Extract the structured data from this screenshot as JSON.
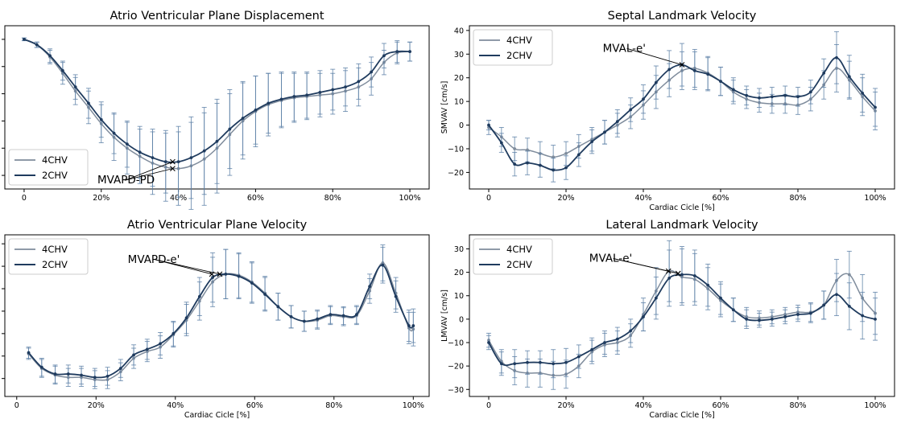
{
  "colors": {
    "series_4chv": "#7f8c9c",
    "series_2chv": "#1f3b5e",
    "errbar": "#5b7fa6",
    "axis": "#000000"
  },
  "chart_data": [
    {
      "id": "avpd",
      "type": "line",
      "title": "Atrio Ventricular Plane Displacement",
      "xlabel": "",
      "ylabel": "",
      "xlim": [
        -5,
        105
      ],
      "ylim": [
        -11,
        1
      ],
      "xticks": [
        0,
        20,
        40,
        60,
        80,
        100
      ],
      "xticklabels": [
        "0",
        "20%",
        "40%",
        "60%",
        "80%",
        "100%"
      ],
      "yticks": [
        0,
        -2,
        -4,
        -6,
        -8,
        -10
      ],
      "yticklabels": [
        "",
        "",
        "",
        "",
        "",
        ""
      ],
      "legend_loc": "lower-left",
      "x": [
        0,
        3.3,
        6.7,
        10,
        13.3,
        16.7,
        20,
        23.3,
        26.7,
        30,
        33.3,
        36.7,
        40,
        43.3,
        46.7,
        50,
        53.3,
        56.7,
        60,
        63.3,
        66.7,
        70,
        73.3,
        76.7,
        80,
        83.3,
        86.7,
        90,
        93.3,
        96.7,
        100
      ],
      "series": [
        {
          "name": "4CHV",
          "values": [
            0,
            -0.4,
            -1.3,
            -2.5,
            -3.8,
            -5.0,
            -6.2,
            -7.2,
            -8.0,
            -8.6,
            -9.1,
            -9.4,
            -9.5,
            -9.3,
            -8.8,
            -8.0,
            -7.0,
            -6.0,
            -5.3,
            -4.8,
            -4.5,
            -4.3,
            -4.2,
            -4.1,
            -4.0,
            -3.8,
            -3.5,
            -2.9,
            -1.7,
            -1.0,
            -0.9
          ],
          "errors": [
            0.1,
            0.2,
            0.5,
            0.8,
            1.0,
            1.2,
            1.4,
            1.7,
            1.9,
            2.0,
            2.3,
            2.5,
            2.7,
            3.2,
            3.4,
            3.3,
            3.0,
            2.8,
            2.6,
            2.3,
            2.0,
            1.8,
            1.7,
            1.6,
            1.5,
            1.5,
            1.4,
            1.2,
            0.9,
            0.8,
            0.7
          ]
        },
        {
          "name": "2CHV",
          "values": [
            0,
            -0.4,
            -1.2,
            -2.3,
            -3.5,
            -4.7,
            -5.9,
            -6.9,
            -7.7,
            -8.3,
            -8.7,
            -9.0,
            -9.0,
            -8.7,
            -8.2,
            -7.5,
            -6.6,
            -5.8,
            -5.2,
            -4.7,
            -4.4,
            -4.2,
            -4.1,
            -3.9,
            -3.7,
            -3.5,
            -3.1,
            -2.4,
            -1.2,
            -0.9,
            -0.9
          ],
          "errors": [
            0.1,
            0.2,
            0.5,
            0.7,
            0.9,
            1.1,
            1.3,
            1.5,
            1.7,
            1.9,
            2.1,
            2.3,
            2.6,
            3.0,
            3.2,
            3.1,
            2.9,
            2.7,
            2.5,
            2.2,
            2.0,
            1.8,
            1.7,
            1.6,
            1.5,
            1.4,
            1.3,
            1.1,
            0.9,
            0.8,
            0.7
          ]
        }
      ],
      "annotations": [
        {
          "text": "MVAPD-PD",
          "x": 19,
          "y": -10.6,
          "points": [
            [
              38.5,
              -9.0
            ],
            [
              38.5,
              -9.5
            ]
          ]
        }
      ]
    },
    {
      "id": "smvav",
      "type": "line",
      "title": "Septal Landmark Velocity",
      "xlabel": "Cardiac Cicle [%]",
      "ylabel": "SMVAV [cm/s]",
      "xlim": [
        -5,
        105
      ],
      "ylim": [
        -27,
        42
      ],
      "xticks": [
        0,
        20,
        40,
        60,
        80,
        100
      ],
      "xticklabels": [
        "0",
        "20%",
        "40%",
        "60%",
        "80%",
        "100%"
      ],
      "yticks": [
        -20,
        -10,
        0,
        10,
        20,
        30,
        40
      ],
      "yticklabels": [
        "−20",
        "−10",
        "0",
        "10",
        "20",
        "30",
        "40"
      ],
      "legend_loc": "upper-left",
      "x": [
        0,
        3.3,
        6.7,
        10,
        13.3,
        16.7,
        20,
        23.3,
        26.7,
        30,
        33.3,
        36.7,
        40,
        43.3,
        46.7,
        50,
        53.3,
        56.7,
        60,
        63.3,
        66.7,
        70,
        73.3,
        76.7,
        80,
        83.3,
        86.7,
        90,
        93.3,
        96.7,
        100
      ],
      "series": [
        {
          "name": "4CHV",
          "values": [
            -1,
            -5,
            -10,
            -10.5,
            -12,
            -13.5,
            -12,
            -9,
            -6,
            -3,
            0,
            3.5,
            8.5,
            14,
            19,
            23,
            24,
            22,
            18.5,
            14,
            11,
            9.5,
            9,
            9,
            8.5,
            11,
            17,
            24,
            19,
            12,
            6
          ],
          "errors": [
            3,
            4,
            5,
            5,
            5,
            5,
            5,
            5,
            5,
            5,
            5,
            5,
            6,
            7,
            7,
            8,
            8,
            7,
            6,
            5,
            4,
            4,
            4,
            4,
            4,
            5,
            6,
            10,
            8,
            8,
            8
          ]
        },
        {
          "name": "2CHV",
          "values": [
            0,
            -7.5,
            -16.5,
            -16,
            -17,
            -19,
            -18,
            -12.5,
            -7,
            -3,
            1.5,
            6.5,
            11,
            18,
            23.5,
            25.5,
            23,
            21.5,
            18.5,
            15,
            12.5,
            11.5,
            12,
            12.5,
            12,
            14,
            22,
            28.5,
            20.5,
            13.5,
            7.5
          ],
          "errors": [
            2,
            4,
            5,
            5,
            5,
            5,
            5,
            5,
            5,
            5,
            5,
            5,
            6,
            7,
            8,
            9,
            8,
            7,
            6,
            5,
            4,
            4,
            4,
            4,
            4,
            5,
            6,
            11,
            9,
            8,
            8
          ]
        }
      ],
      "annotations": [
        {
          "text": "MVAL-e'",
          "x": 29.5,
          "y": 31,
          "points": [
            [
              50,
              25.5
            ]
          ]
        }
      ]
    },
    {
      "id": "avpv",
      "type": "line",
      "title": "Atrio Ventricular Plane Velocity",
      "xlabel": "Cardiac Cicle [%]",
      "ylabel": "",
      "xlim": [
        -3,
        104
      ],
      "ylim": [
        -7.6,
        6.8
      ],
      "xticks": [
        0,
        20,
        40,
        60,
        80,
        100
      ],
      "xticklabels": [
        "0",
        "20%",
        "40%",
        "60%",
        "80%",
        "100%"
      ],
      "yticks": [
        -6,
        -4,
        -2,
        0,
        2,
        4,
        6
      ],
      "yticklabels": [
        "",
        "",
        "",
        "",
        "",
        "",
        ""
      ],
      "legend_loc": "upper-left",
      "x": [
        3,
        6.3,
        9.7,
        13,
        16.3,
        19.7,
        22.9,
        26.2,
        29.5,
        32.9,
        36.2,
        39.5,
        42.8,
        46.1,
        49.4,
        52.7,
        56,
        59.3,
        62.6,
        65.9,
        69.2,
        72.5,
        75.8,
        79.1,
        82.4,
        85.7,
        89,
        92.3,
        95.6,
        98.9,
        100
      ],
      "series": [
        {
          "name": "4CHV",
          "values": [
            -3.8,
            -5.1,
            -5.7,
            -5.9,
            -5.9,
            -6.1,
            -6.1,
            -5.4,
            -4.2,
            -3.6,
            -3.2,
            -2.1,
            -0.8,
            0.9,
            2.6,
            3.3,
            3.2,
            2.6,
            1.6,
            0.4,
            -0.5,
            -0.9,
            -0.8,
            -0.4,
            -0.5,
            -0.4,
            1.8,
            4.3,
            1.6,
            -1.5,
            -1.6
          ],
          "errors": [
            0.5,
            0.8,
            0.8,
            0.8,
            0.8,
            0.8,
            0.8,
            0.8,
            0.9,
            0.9,
            1.0,
            1.1,
            1.4,
            1.7,
            2.2,
            2.2,
            2.0,
            1.8,
            1.5,
            1.2,
            1.0,
            0.9,
            0.8,
            0.8,
            0.8,
            0.8,
            1.1,
            1.6,
            1.4,
            1.4,
            1.5
          ]
        },
        {
          "name": "2CHV",
          "values": [
            -3.7,
            -5.0,
            -5.6,
            -5.6,
            -5.7,
            -5.9,
            -5.8,
            -5.1,
            -3.9,
            -3.4,
            -2.9,
            -2.0,
            -0.6,
            1.3,
            3.0,
            3.3,
            3.1,
            2.5,
            1.5,
            0.4,
            -0.5,
            -0.9,
            -0.7,
            -0.3,
            -0.4,
            -0.3,
            2.2,
            4.1,
            1.3,
            -1.3,
            -1.3
          ],
          "errors": [
            0.5,
            0.8,
            0.8,
            0.8,
            0.8,
            0.8,
            0.8,
            0.8,
            0.9,
            0.9,
            1.0,
            1.1,
            1.4,
            1.7,
            2.2,
            2.2,
            2.0,
            1.8,
            1.5,
            1.2,
            1.0,
            0.9,
            0.8,
            0.8,
            0.8,
            0.8,
            1.1,
            1.6,
            1.4,
            1.4,
            1.5
          ]
        }
      ],
      "annotations": [
        {
          "text": "MVAPD-e'",
          "x": 28,
          "y": 4.3,
          "points": [
            [
              49.2,
              3.3
            ],
            [
              51.2,
              3.3
            ]
          ]
        }
      ]
    },
    {
      "id": "lmvav",
      "type": "line",
      "title": "Lateral Landmark Velocity",
      "xlabel": "Cardiac Cicle [%]",
      "ylabel": "LMVAV [cm/s]",
      "xlim": [
        -5,
        105
      ],
      "ylim": [
        -33,
        36
      ],
      "xticks": [
        0,
        20,
        40,
        60,
        80,
        100
      ],
      "xticklabels": [
        "0",
        "20%",
        "40%",
        "60%",
        "80%",
        "100%"
      ],
      "yticks": [
        -30,
        -20,
        -10,
        0,
        10,
        20,
        30
      ],
      "yticklabels": [
        "−30",
        "−20",
        "−10",
        "0",
        "10",
        "20",
        "30"
      ],
      "legend_loc": "upper-left",
      "x": [
        0,
        3.3,
        6.7,
        10,
        13.3,
        16.7,
        20,
        23.3,
        26.7,
        30,
        33.3,
        36.7,
        40,
        43.3,
        46.7,
        50,
        53.3,
        56.7,
        60,
        63.3,
        66.7,
        70,
        73.3,
        76.7,
        80,
        83.3,
        86.7,
        90,
        93.3,
        96.7,
        100
      ],
      "series": [
        {
          "name": "4CHV",
          "values": [
            -9,
            -18,
            -22,
            -23,
            -23,
            -24,
            -23.5,
            -20,
            -14,
            -11,
            -10,
            -7,
            2,
            12,
            20.5,
            18,
            17,
            13,
            8,
            4,
            1,
            0.5,
            1,
            2,
            3,
            3,
            6,
            16.5,
            19,
            9,
            2.5
          ],
          "errors": [
            3,
            5,
            6,
            6,
            6,
            6,
            6,
            5,
            5,
            5,
            5,
            5,
            7,
            10,
            13,
            12,
            11,
            9,
            7,
            5,
            4,
            3,
            3,
            3,
            3,
            4,
            6,
            9,
            10,
            10,
            9
          ]
        },
        {
          "name": "2CHV",
          "values": [
            -10,
            -19,
            -19,
            -18.5,
            -18.5,
            -19,
            -18.5,
            -16,
            -13,
            -10,
            -8.5,
            -5,
            1,
            9,
            17.5,
            19,
            18.5,
            14.5,
            9,
            4,
            0,
            -0.5,
            0,
            1,
            2,
            2.5,
            6,
            10.5,
            5.5,
            1.5,
            0
          ],
          "errors": [
            3,
            5,
            6,
            5,
            5,
            6,
            6,
            5,
            5,
            5,
            5,
            5,
            6,
            9,
            12,
            12,
            11,
            9,
            7,
            5,
            4,
            3,
            3,
            3,
            3,
            4,
            6,
            9,
            10,
            10,
            9
          ]
        }
      ],
      "annotations": [
        {
          "text": "MVAL-e'",
          "x": 26,
          "y": 24.5,
          "points": [
            [
              46.5,
              20.5
            ],
            [
              49,
              19.5
            ]
          ]
        }
      ]
    }
  ]
}
